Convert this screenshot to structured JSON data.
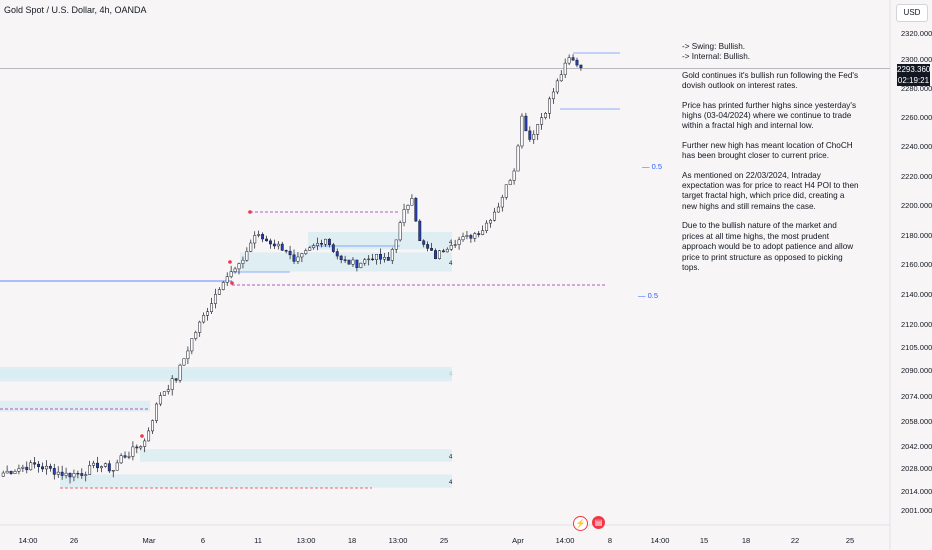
{
  "header": {
    "symbol_title": "Gold Spot / U.S. Dollar, 4h, OANDA",
    "currency_button": "USD"
  },
  "price_tag": {
    "price": "2293.360",
    "countdown": "02:19:21"
  },
  "notes": {
    "swing": "-> Swing:  Bullish.",
    "internal": "-> Internal:  Bullish.",
    "paragraphs": [
      "Gold continues it's bullish run following the Fed's dovish outlook on interest rates.",
      "Price has printed further highs since yesterday's highs (03-04/2024) where we continue to trade within a fractal high and internal low.",
      "Further new high has meant location of ChoCH has been brought closer to current price.",
      "As mentioned on 22/03/2024, Intraday expectation was for price to react H4 POI to then target fractal high, which price did, creating a new highs and still remains the case.",
      "Due to the bullish nature of the market and prices at all time highs, the most prudent approach would be to adopt patience and allow price to print structure as opposed to picking tops."
    ]
  },
  "fib_labels": [
    "— 0.5",
    "— 0.5"
  ],
  "zone_label": "4",
  "events": {
    "earnings_icon": "lightning-icon",
    "us_flag_icon": "us-flag-icon"
  },
  "colors": {
    "up": "#ffffff",
    "down": "#2440b8",
    "outline": "#131722",
    "zone": "#d8ecf3",
    "accent": "#2962ff",
    "level_dash": "#9c27b0"
  },
  "chart_data": {
    "type": "candlestick",
    "title": "Gold Spot / U.S. Dollar, 4h, OANDA",
    "y_ticks": [
      2001,
      2014,
      2028,
      2042,
      2058,
      2074,
      2090,
      2105,
      2120,
      2140,
      2160,
      2180,
      2200,
      2220,
      2240,
      2260,
      2280,
      2300,
      2320
    ],
    "y_tick_labels": [
      "2001.000",
      "2014.000",
      "2028.000",
      "2042.000",
      "2058.000",
      "2074.000",
      "2090.000",
      "2105.000",
      "2120.000",
      "2140.000",
      "2160.000",
      "2180.000",
      "2200.000",
      "2220.000",
      "2240.000",
      "2260.000",
      "2280.000",
      "2300.000",
      "2320.000"
    ],
    "x_tick_labels": [
      "14:00",
      "26",
      "Mar",
      "6",
      "11",
      "13:00",
      "18",
      "13:00",
      "25",
      "Apr",
      "14:00",
      "8",
      "14:00",
      "15",
      "18",
      "22",
      "25"
    ],
    "last_price": 2293.36,
    "anchors": [
      [
        0,
        2025
      ],
      [
        4,
        2028
      ],
      [
        8,
        2030
      ],
      [
        12,
        2027
      ],
      [
        16,
        2024
      ],
      [
        20,
        2025
      ],
      [
        24,
        2030
      ],
      [
        28,
        2027
      ],
      [
        30,
        2035
      ],
      [
        32,
        2037
      ],
      [
        36,
        2045
      ],
      [
        40,
        2075
      ],
      [
        44,
        2085
      ],
      [
        48,
        2110
      ],
      [
        52,
        2130
      ],
      [
        56,
        2150
      ],
      [
        60,
        2158
      ],
      [
        64,
        2180
      ],
      [
        68,
        2175
      ],
      [
        72,
        2170
      ],
      [
        74,
        2160
      ],
      [
        78,
        2170
      ],
      [
        82,
        2178
      ],
      [
        86,
        2162
      ],
      [
        90,
        2160
      ],
      [
        94,
        2165
      ],
      [
        98,
        2162
      ],
      [
        102,
        2195
      ],
      [
        104,
        2207
      ],
      [
        106,
        2175
      ],
      [
        110,
        2165
      ],
      [
        114,
        2175
      ],
      [
        118,
        2178
      ],
      [
        122,
        2184
      ],
      [
        126,
        2200
      ],
      [
        130,
        2225
      ],
      [
        132,
        2260
      ],
      [
        134,
        2245
      ],
      [
        138,
        2265
      ],
      [
        142,
        2290
      ],
      [
        144,
        2300
      ],
      [
        146,
        2297
      ],
      [
        147,
        2294
      ]
    ],
    "volatility": 5,
    "levels": [
      2306,
      2264,
      2145,
      2147,
      2196
    ],
    "zones": [
      [
        2170,
        2182
      ],
      [
        2155,
        2168
      ],
      [
        2085,
        2092
      ],
      [
        2032,
        2040
      ],
      [
        2016,
        2024
      ]
    ]
  }
}
